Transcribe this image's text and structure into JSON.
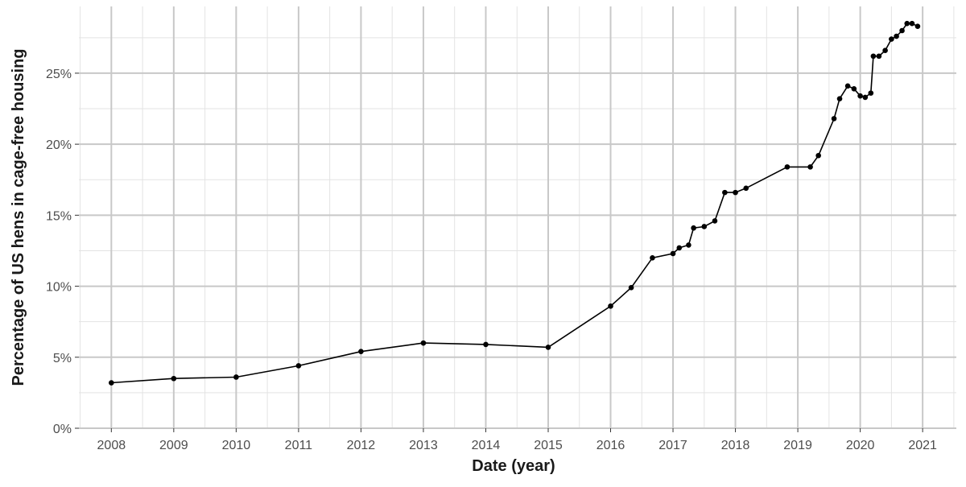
{
  "chart_data": {
    "type": "line",
    "title": "",
    "xlabel": "Date (year)",
    "ylabel": "Percentage of US hens in cage-free housing",
    "xlim": [
      2007.48,
      2021.54
    ],
    "ylim": [
      0,
      29.7
    ],
    "x_ticks": [
      "2008",
      "2009",
      "2010",
      "2011",
      "2012",
      "2013",
      "2014",
      "2015",
      "2016",
      "2017",
      "2018",
      "2019",
      "2020",
      "2021"
    ],
    "y_ticks": [
      "0%",
      "5%",
      "10%",
      "15%",
      "20%",
      "25%"
    ],
    "grid": true,
    "legend": "none",
    "line_color": "#000000",
    "series": [
      {
        "x": [
          2008.0,
          2009.0,
          2010.0,
          2011.0,
          2012.0,
          2013.0,
          2014.0,
          2015.0,
          2016.0,
          2016.33,
          2016.67,
          2017.0,
          2017.1,
          2017.25,
          2017.33,
          2017.5,
          2017.67,
          2017.83,
          2018.0,
          2018.17,
          2018.83,
          2019.2,
          2019.33,
          2019.58,
          2019.67,
          2019.8,
          2019.9,
          2020.0,
          2020.08,
          2020.17,
          2020.21,
          2020.3,
          2020.4,
          2020.5,
          2020.58,
          2020.67,
          2020.75,
          2020.83,
          2020.92
        ],
        "y": [
          3.2,
          3.5,
          3.6,
          4.4,
          5.4,
          6.0,
          5.9,
          5.7,
          8.6,
          9.9,
          12.0,
          12.3,
          12.7,
          12.9,
          14.1,
          14.2,
          14.6,
          16.6,
          16.6,
          16.9,
          18.4,
          18.4,
          19.2,
          21.8,
          23.2,
          24.1,
          23.9,
          23.4,
          23.3,
          23.6,
          26.2,
          26.2,
          26.6,
          27.4,
          27.6,
          28.0,
          28.5,
          28.5,
          28.3
        ]
      }
    ]
  }
}
